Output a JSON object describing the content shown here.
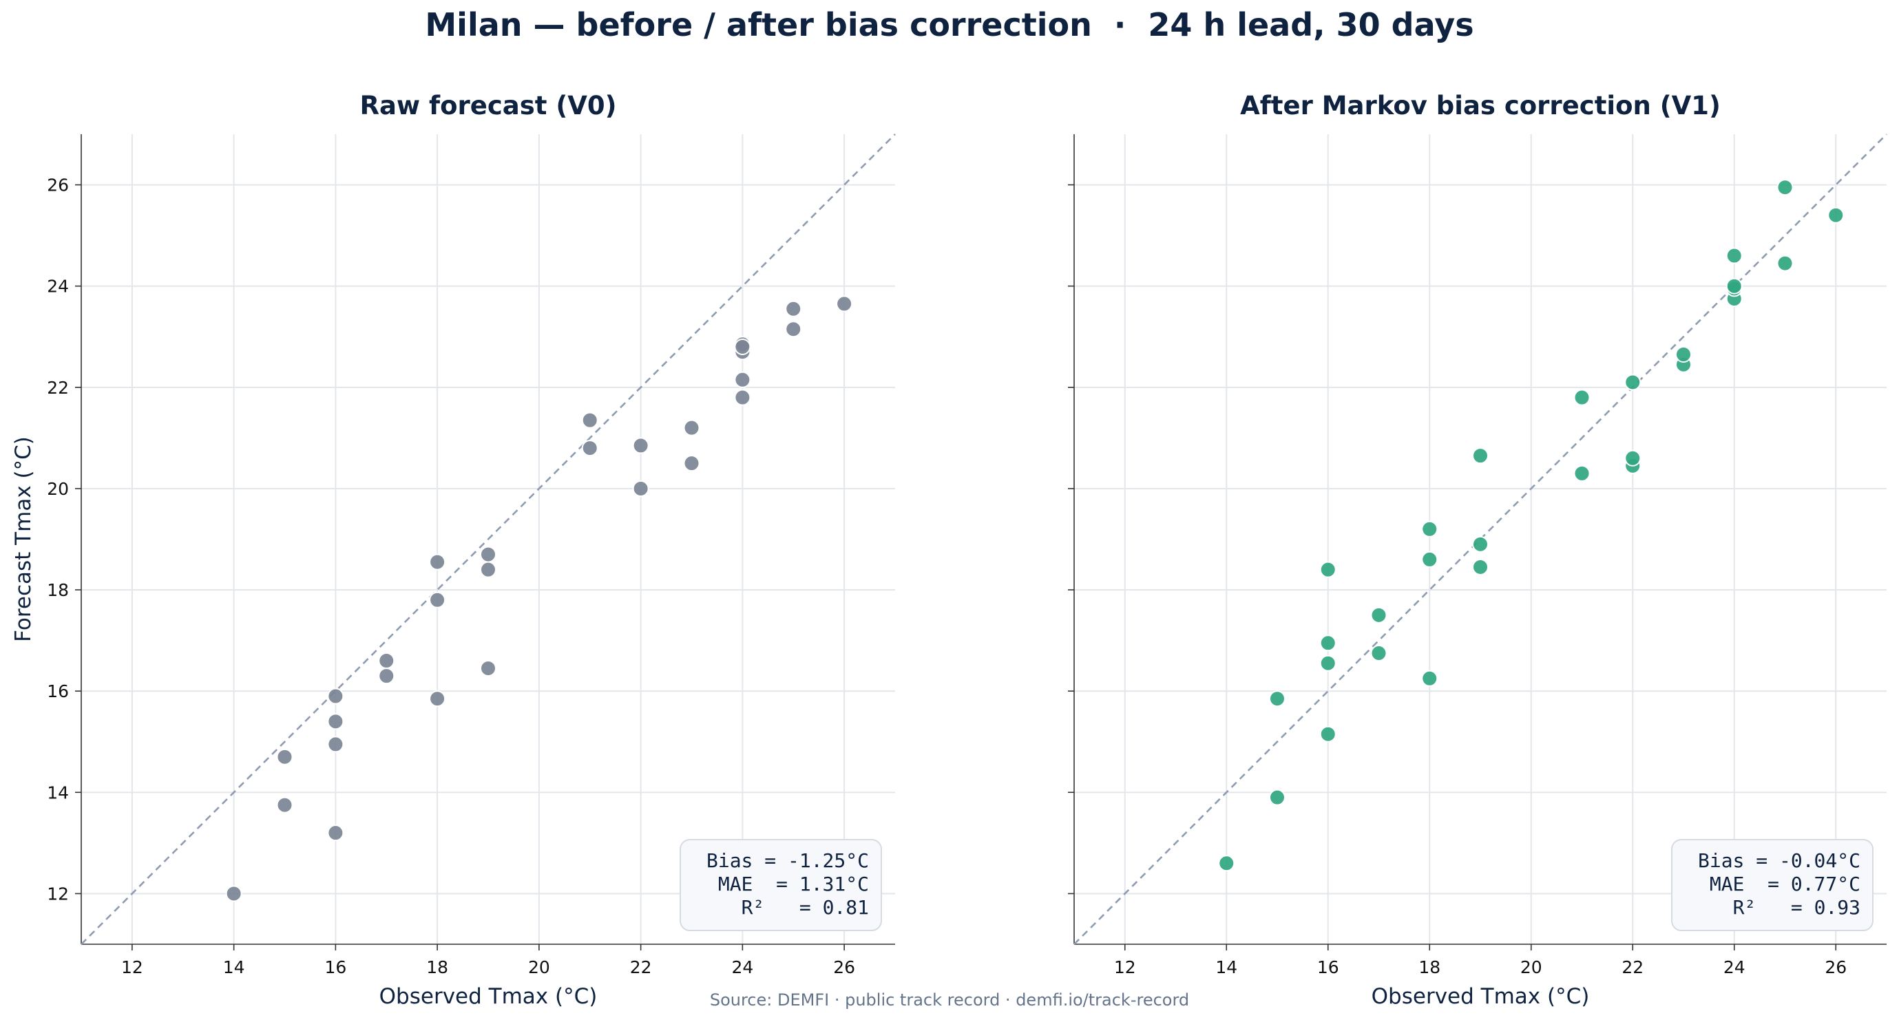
{
  "figure": {
    "suptitle": "Milan — before / after bias correction  ·  24 h lead, 30 days",
    "source": "Source: DEMFI · public track record · demfi.io/track-record",
    "colors": {
      "title": "#0f2340",
      "grid": "#e3e6ea",
      "axis": "#333333",
      "diagonal": "#8f9bb0",
      "raw_points": "#7b8494",
      "corrected_points": "#2fa67f",
      "box_fill": "#f6f8fb",
      "box_edge": "#d5dbe3",
      "source_text": "#64748b"
    }
  },
  "chart_data": [
    {
      "type": "scatter",
      "title": "Raw forecast (V0)",
      "xlabel": "Observed Tmax (°C)",
      "ylabel": "Forecast Tmax (°C)",
      "xlim": [
        11,
        27
      ],
      "ylim": [
        11,
        27
      ],
      "xticks": [
        12,
        14,
        16,
        18,
        20,
        22,
        24,
        26
      ],
      "yticks": [
        12,
        14,
        16,
        18,
        20,
        22,
        24,
        26
      ],
      "xtick_labels": [
        "12",
        "14",
        "16",
        "18",
        "20",
        "22",
        "24",
        "26"
      ],
      "ytick_labels": [
        "12",
        "14",
        "16",
        "18",
        "20",
        "22",
        "24",
        "26"
      ],
      "grid": true,
      "reference_line": "y = x (dashed)",
      "series": [
        {
          "name": "Raw forecast (V0)",
          "x": [
            14,
            15,
            15,
            16,
            16,
            16,
            16,
            17,
            17,
            18,
            18,
            18,
            19,
            19,
            19,
            21,
            21,
            22,
            22,
            23,
            23,
            24,
            24,
            24,
            24,
            24,
            25,
            25,
            26
          ],
          "y": [
            12.0,
            13.75,
            14.7,
            13.2,
            14.95,
            15.4,
            15.9,
            16.3,
            16.6,
            15.85,
            17.8,
            18.55,
            16.45,
            18.4,
            18.7,
            20.8,
            21.35,
            20.0,
            20.85,
            20.5,
            21.2,
            21.8,
            22.15,
            22.7,
            22.85,
            22.8,
            23.15,
            23.55,
            23.65
          ]
        }
      ],
      "stats_box": {
        "lines": [
          "Bias = -1.25°C",
          "MAE  = 1.31°C",
          "R²   = 0.81"
        ],
        "position": "bottom-right"
      }
    },
    {
      "type": "scatter",
      "title": "After Markov bias correction (V1)",
      "xlabel": "Observed Tmax (°C)",
      "ylabel": "",
      "xlim": [
        11,
        27
      ],
      "ylim": [
        11,
        27
      ],
      "xticks": [
        12,
        14,
        16,
        18,
        20,
        22,
        24,
        26
      ],
      "yticks": [
        12,
        14,
        16,
        18,
        20,
        22,
        24,
        26
      ],
      "xtick_labels": [
        "12",
        "14",
        "16",
        "18",
        "20",
        "22",
        "24",
        "26"
      ],
      "ytick_labels": [],
      "grid": true,
      "reference_line": "y = x (dashed)",
      "series": [
        {
          "name": "After Markov bias correction (V1)",
          "x": [
            14,
            15,
            15,
            16,
            16,
            16,
            16,
            17,
            17,
            18,
            18,
            18,
            19,
            19,
            19,
            21,
            21,
            22,
            22,
            22,
            23,
            23,
            24,
            24,
            24,
            24,
            25,
            25,
            26
          ],
          "y": [
            12.6,
            13.9,
            15.85,
            15.15,
            16.55,
            16.95,
            18.4,
            16.75,
            17.5,
            16.25,
            18.6,
            19.2,
            18.45,
            18.9,
            20.65,
            20.3,
            21.8,
            20.45,
            20.6,
            22.1,
            22.45,
            22.65,
            23.75,
            23.95,
            24.0,
            24.6,
            24.45,
            25.95,
            25.4
          ]
        }
      ],
      "stats_box": {
        "lines": [
          "Bias = -0.04°C",
          "MAE  = 0.77°C",
          "R²   = 0.93"
        ],
        "position": "bottom-right"
      }
    }
  ]
}
